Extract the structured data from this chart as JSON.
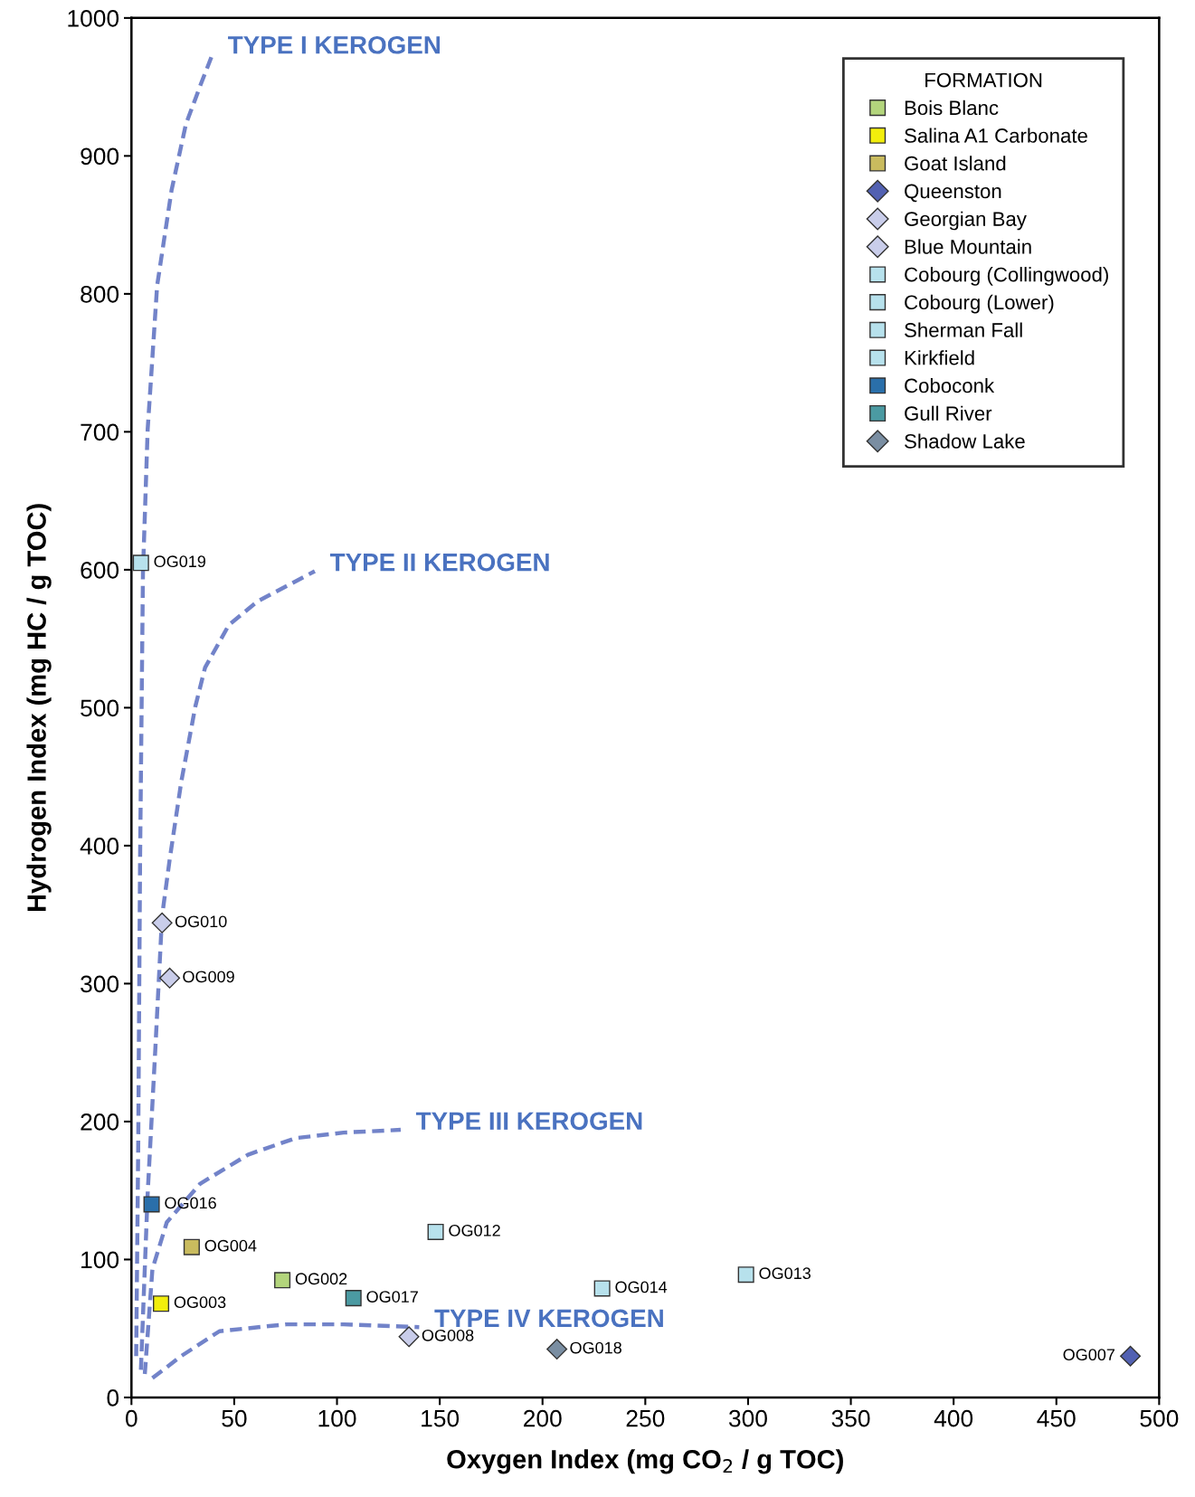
{
  "chart_data": {
    "type": "scatter",
    "xlabel": "Oxygen Index (mg CO$_{2}$ / g TOC)",
    "ylabel": "Hydrogen Index (mg HC / g TOC)",
    "legend_title": "FORMATION",
    "legend": "top right",
    "grid": false,
    "xlim": [
      0,
      500
    ],
    "xticks": [
      0,
      50,
      100,
      150,
      200,
      250,
      300,
      350,
      400,
      450,
      500
    ],
    "ylim": [
      0,
      1000
    ],
    "yticks": [
      0,
      100,
      200,
      300,
      400,
      500,
      600,
      700,
      800,
      900,
      1000
    ],
    "series": [
      {
        "type": "line",
        "name": "TYPE I KEROGEN",
        "color": "#7283c9",
        "line_style": "dashed",
        "marker": "none",
        "x": [
          2.3,
          3.3,
          4.2,
          5.6,
          7.9,
          12.5,
          19.5,
          26.5,
          33.5,
          39.5
        ],
        "values": [
          30,
          183,
          390,
          598,
          702,
          806,
          875,
          923,
          951,
          974
        ]
      },
      {
        "type": "line",
        "name": "TYPE II KEROGEN",
        "color": "#7283c9",
        "line_style": "dashed",
        "marker": "none",
        "x": [
          4.6,
          7.9,
          11.6,
          14.9,
          18.6,
          24.2,
          31.1,
          35.8,
          47.4,
          61.3,
          89.2
        ],
        "values": [
          20,
          148,
          252,
          349,
          390,
          446,
          501,
          529,
          560,
          577,
          599
        ]
      },
      {
        "type": "line",
        "name": "TYPE III KEROGEN",
        "color": "#7283c9",
        "line_style": "dashed",
        "marker": "none",
        "x": [
          6.5,
          10.2,
          17.2,
          33.5,
          56.7,
          79.9,
          103.2,
          131
        ],
        "values": [
          17,
          93,
          127,
          155,
          176,
          188,
          192,
          194
        ]
      },
      {
        "type": "line",
        "name": "TYPE IV KEROGEN",
        "color": "#7283c9",
        "line_style": "dashed",
        "marker": "none",
        "x": [
          10.2,
          24.2,
          42.8,
          75.3,
          103.2,
          140
        ],
        "values": [
          14,
          30,
          48,
          53,
          53,
          51
        ]
      },
      {
        "name": "Bois Blanc",
        "color": "#b3d57c",
        "marker": "square",
        "x": [
          73.4
        ],
        "values": [
          85
        ],
        "value_labels": [
          "OG002"
        ]
      },
      {
        "name": "Salina A1 Carbonate",
        "color": "#f2ee0c",
        "marker": "square",
        "x": [
          14.4
        ],
        "values": [
          68
        ],
        "value_labels": [
          "OG003"
        ]
      },
      {
        "name": "Goat Island",
        "color": "#c9bb5e",
        "marker": "square",
        "x": [
          29.3
        ],
        "values": [
          109
        ],
        "value_labels": [
          "OG004"
        ]
      },
      {
        "name": "Queenston",
        "color": "#5261b2",
        "marker": "diamond",
        "x": [
          486
        ],
        "values": [
          30
        ],
        "value_labels": [
          "OG007"
        ]
      },
      {
        "name": "Georgian Bay",
        "color": "#c9cdea",
        "marker": "diamond",
        "x": [
          135
        ],
        "values": [
          44
        ],
        "value_labels": [
          "OG008"
        ]
      },
      {
        "name": "Blue Mountain",
        "color": "#c9cdea",
        "marker": "diamond",
        "x": [
          18.6,
          14.9
        ],
        "values": [
          304,
          344
        ],
        "value_labels": [
          "OG009",
          "OG010"
        ]
      },
      {
        "name": "Cobourg (Collingwood)",
        "color": "#b7e1ec",
        "marker": "square",
        "x": [
          148
        ],
        "values": [
          120
        ],
        "value_labels": [
          "OG012"
        ]
      },
      {
        "name": "Cobourg (Lower)",
        "color": "#b7e1ec",
        "marker": "square",
        "x": [
          299
        ],
        "values": [
          89
        ],
        "value_labels": [
          "OG013"
        ]
      },
      {
        "name": "Sherman Fall",
        "color": "#b7e1ec",
        "marker": "square",
        "x": [
          229
        ],
        "values": [
          79
        ],
        "value_labels": [
          "OG014"
        ]
      },
      {
        "name": "Kirkfield",
        "color": "#b7e1ec",
        "marker": "square",
        "x": [
          4.6
        ],
        "values": [
          605
        ],
        "value_labels": [
          "OG019"
        ]
      },
      {
        "name": "Coboconk",
        "color": "#2a6faa",
        "marker": "square",
        "x": [
          9.8
        ],
        "values": [
          140
        ],
        "value_labels": [
          "OG016"
        ]
      },
      {
        "name": "Gull River",
        "color": "#4b9aa2",
        "marker": "square",
        "x": [
          108
        ],
        "values": [
          72
        ],
        "value_labels": [
          "OG017"
        ]
      },
      {
        "name": "Shadow Lake",
        "color": "#7a8ea2",
        "marker": "diamond",
        "x": [
          207
        ],
        "values": [
          35
        ],
        "value_labels": [
          "OG018"
        ]
      }
    ]
  }
}
